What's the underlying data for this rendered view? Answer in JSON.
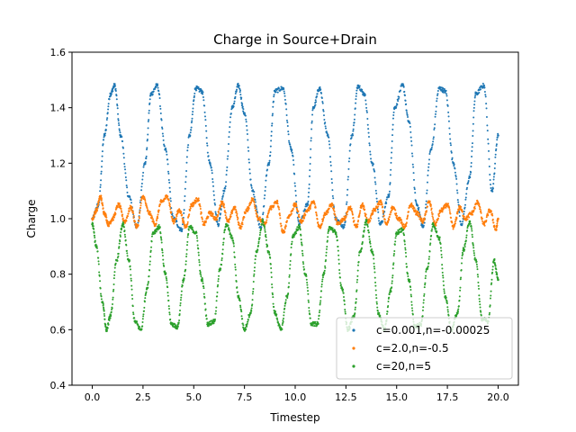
{
  "chart_data": {
    "type": "scatter",
    "title": "Charge in Source+Drain",
    "xlabel": "Timestep",
    "ylabel": "Charge",
    "xlim": [
      -1.0,
      21.0
    ],
    "ylim": [
      0.4,
      1.6
    ],
    "xticks": [
      0.0,
      2.5,
      5.0,
      7.5,
      10.0,
      12.5,
      15.0,
      17.5,
      20.0
    ],
    "xtick_labels": [
      "0.0",
      "2.5",
      "5.0",
      "7.5",
      "10.0",
      "12.5",
      "15.0",
      "17.5",
      "20.0"
    ],
    "yticks": [
      0.4,
      0.6,
      0.8,
      1.0,
      1.2,
      1.4,
      1.6
    ],
    "ytick_labels": [
      "0.4",
      "0.6",
      "0.8",
      "1.0",
      "1.2",
      "1.4",
      "1.6"
    ],
    "grid": false,
    "legend_position": "lower-right",
    "series": [
      {
        "name": "c=0.001,n=-0.00025",
        "color": "#1f77b4",
        "x": [
          0.0,
          0.3,
          0.6,
          0.9,
          1.1,
          1.4,
          1.8,
          2.2,
          2.6,
          2.9,
          3.2,
          3.6,
          4.0,
          4.4,
          4.8,
          5.1,
          5.4,
          5.8,
          6.2,
          6.5,
          6.9,
          7.2,
          7.5,
          7.9,
          8.3,
          8.7,
          9.0,
          9.4,
          9.8,
          10.2,
          10.6,
          10.9,
          11.2,
          11.6,
          12.0,
          12.4,
          12.8,
          13.1,
          13.4,
          13.8,
          14.2,
          14.6,
          14.9,
          15.3,
          15.6,
          16.0,
          16.3,
          16.7,
          17.1,
          17.4,
          17.8,
          18.2,
          18.6,
          18.9,
          19.3,
          19.7,
          20.0
        ],
        "y": [
          1.0,
          1.05,
          1.3,
          1.45,
          1.48,
          1.3,
          1.08,
          0.97,
          1.2,
          1.45,
          1.48,
          1.25,
          1.0,
          0.96,
          1.3,
          1.47,
          1.46,
          1.2,
          0.98,
          1.1,
          1.4,
          1.48,
          1.38,
          1.1,
          0.97,
          1.2,
          1.46,
          1.47,
          1.25,
          0.98,
          1.05,
          1.4,
          1.47,
          1.3,
          1.0,
          0.97,
          1.3,
          1.48,
          1.45,
          1.2,
          0.98,
          1.08,
          1.4,
          1.48,
          1.35,
          1.05,
          0.97,
          1.25,
          1.47,
          1.46,
          1.2,
          0.98,
          1.15,
          1.45,
          1.48,
          1.1,
          1.3
        ]
      },
      {
        "name": "c=2.0,n=-0.5",
        "color": "#ff7f0e",
        "x": [
          0.0,
          0.2,
          0.4,
          0.6,
          0.8,
          1.0,
          1.3,
          1.6,
          1.9,
          2.2,
          2.5,
          2.8,
          3.1,
          3.4,
          3.7,
          4.0,
          4.3,
          4.6,
          4.9,
          5.2,
          5.5,
          5.8,
          6.1,
          6.4,
          6.7,
          7.0,
          7.3,
          7.6,
          7.9,
          8.2,
          8.5,
          8.8,
          9.1,
          9.4,
          9.7,
          10.0,
          10.3,
          10.6,
          10.9,
          11.2,
          11.5,
          11.8,
          12.1,
          12.4,
          12.7,
          13.0,
          13.3,
          13.6,
          13.9,
          14.2,
          14.5,
          14.8,
          15.1,
          15.4,
          15.7,
          16.0,
          16.3,
          16.6,
          16.9,
          17.2,
          17.5,
          17.8,
          18.1,
          18.4,
          18.7,
          19.0,
          19.3,
          19.6,
          19.9,
          20.0
        ],
        "y": [
          1.0,
          1.03,
          1.08,
          1.02,
          0.98,
          1.0,
          1.05,
          0.99,
          1.04,
          0.97,
          1.08,
          1.02,
          0.98,
          1.06,
          1.08,
          0.99,
          1.03,
          0.97,
          1.05,
          1.07,
          0.98,
          1.02,
          1.0,
          1.06,
          0.99,
          1.04,
          0.97,
          1.03,
          1.07,
          1.0,
          0.98,
          1.04,
          1.06,
          0.95,
          1.01,
          1.05,
          0.99,
          1.03,
          1.06,
          0.97,
          1.02,
          1.05,
          0.98,
          1.0,
          1.04,
          0.97,
          1.05,
          0.99,
          1.03,
          1.06,
          0.98,
          1.04,
          1.0,
          0.97,
          1.05,
          1.02,
          0.99,
          1.06,
          0.98,
          1.03,
          1.05,
          0.97,
          1.04,
          1.0,
          1.02,
          1.06,
          0.98,
          1.03,
          0.96,
          1.0
        ]
      },
      {
        "name": "c=20,n=5",
        "color": "#2ca02c",
        "x": [
          0.0,
          0.2,
          0.5,
          0.7,
          0.9,
          1.2,
          1.5,
          1.8,
          2.1,
          2.4,
          2.7,
          3.0,
          3.3,
          3.6,
          3.9,
          4.2,
          4.5,
          4.8,
          5.1,
          5.4,
          5.7,
          6.0,
          6.3,
          6.6,
          6.9,
          7.2,
          7.5,
          7.8,
          8.1,
          8.4,
          8.7,
          9.0,
          9.3,
          9.6,
          9.9,
          10.2,
          10.5,
          10.8,
          11.1,
          11.4,
          11.7,
          12.0,
          12.3,
          12.6,
          12.9,
          13.2,
          13.5,
          13.8,
          14.1,
          14.4,
          14.7,
          15.0,
          15.3,
          15.6,
          15.9,
          16.2,
          16.5,
          16.8,
          17.1,
          17.4,
          17.7,
          18.0,
          18.3,
          18.6,
          18.9,
          19.2,
          19.5,
          19.8,
          20.0
        ],
        "y": [
          0.98,
          0.9,
          0.7,
          0.6,
          0.65,
          0.85,
          0.98,
          0.85,
          0.63,
          0.6,
          0.75,
          0.95,
          0.97,
          0.8,
          0.62,
          0.61,
          0.78,
          0.97,
          0.95,
          0.78,
          0.62,
          0.63,
          0.82,
          0.98,
          0.93,
          0.72,
          0.6,
          0.66,
          0.88,
          0.99,
          0.88,
          0.66,
          0.6,
          0.72,
          0.94,
          0.97,
          0.8,
          0.62,
          0.62,
          0.8,
          0.97,
          0.95,
          0.75,
          0.6,
          0.65,
          0.88,
          0.99,
          0.88,
          0.66,
          0.6,
          0.74,
          0.95,
          0.96,
          0.78,
          0.61,
          0.62,
          0.82,
          0.98,
          0.93,
          0.72,
          0.6,
          0.66,
          0.89,
          0.99,
          0.85,
          0.64,
          0.63,
          0.85,
          0.78
        ]
      }
    ]
  }
}
